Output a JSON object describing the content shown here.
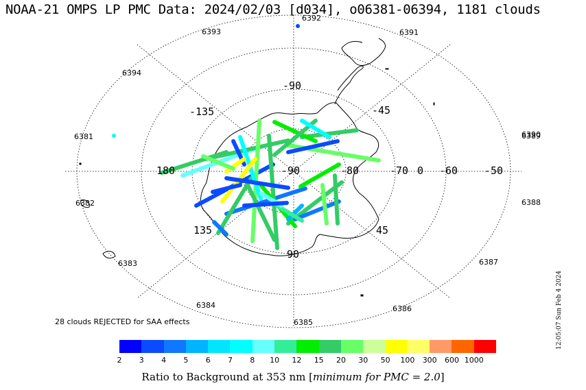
{
  "title": "NOAA-21 OMPS LP PMC Data: 2024/02/03 [d034], o06381-06394, 1181 clouds",
  "orbits": [
    "6393",
    "6392",
    "6391",
    "6394",
    "6390",
    "6381",
    "6389",
    "6382",
    "6388",
    "6383",
    "6387",
    "6384",
    "6386",
    "6385"
  ],
  "meridian_labels": [
    "-90",
    "-135",
    "-45",
    "180",
    "0",
    "135",
    "45",
    "90"
  ],
  "latitude_labels": [
    "-90",
    "-80",
    "-70",
    "-60",
    "-50"
  ],
  "saa_note": "28 clouds REJECTED for SAA effects",
  "timestamp": "12:05:07 Sun Feb  4 2024",
  "colorbar": {
    "colors": [
      "#0000ff",
      "#0a4bff",
      "#0f78ff",
      "#00b4ff",
      "#00e6ff",
      "#00ffff",
      "#66ffff",
      "#33ee99",
      "#00ee00",
      "#33cc66",
      "#66ff66",
      "#ccff99",
      "#ffff00",
      "#ffff66",
      "#ff9966",
      "#ff6600",
      "#ff0000"
    ],
    "ticks": [
      "2",
      "3",
      "4",
      "5",
      "6",
      "7",
      "8",
      "10",
      "12",
      "15",
      "20",
      "30",
      "50",
      "100",
      "300",
      "600",
      "1000"
    ],
    "title_prefix": "Ratio to Background at 353 nm [",
    "title_italic": "minimum for PMC = 2.0",
    "title_suffix": "]"
  }
}
